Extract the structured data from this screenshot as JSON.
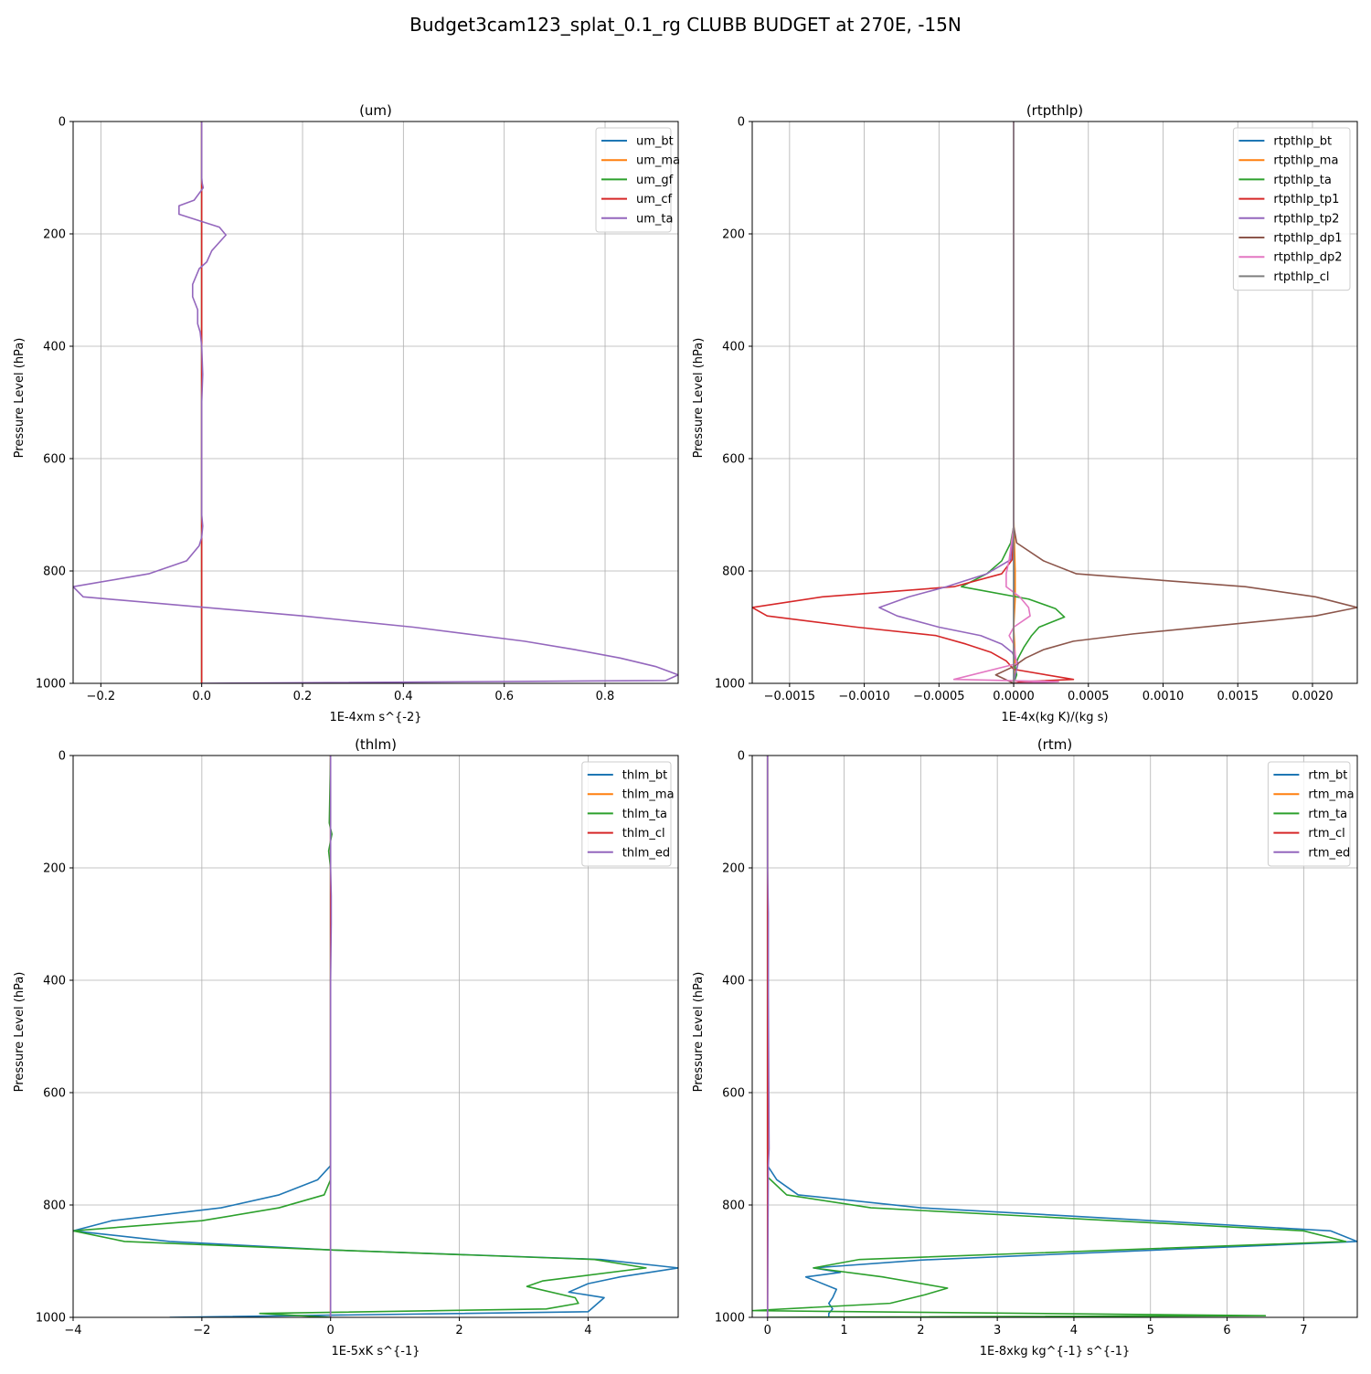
{
  "figure": {
    "suptitle": "Budget3cam123_splat_0.1_rg CLUBB BUDGET at 270E, -15N",
    "colors": [
      "#1f77b4",
      "#ff7f0e",
      "#2ca02c",
      "#d62728",
      "#9467bd",
      "#8c564b",
      "#e377c2",
      "#7f7f7f"
    ]
  },
  "chart_data": [
    {
      "type": "line",
      "title": "(um)",
      "xlabel": "1E-4xm s^{-2}",
      "ylabel": "Pressure Level (hPa)",
      "xlim": [
        -0.255,
        0.945
      ],
      "ylim": [
        1000,
        0
      ],
      "y_inverted": true,
      "grid": true,
      "legend_position": "upper-right",
      "xticks": [
        -0.2,
        0.0,
        0.2,
        0.4,
        0.6,
        0.8
      ],
      "xtick_labels": [
        "−0.2",
        "0.0",
        "0.2",
        "0.4",
        "0.6",
        "0.8"
      ],
      "yticks": [
        0,
        200,
        400,
        600,
        800,
        1000
      ],
      "ytick_labels": [
        "0",
        "200",
        "400",
        "600",
        "800",
        "1000"
      ],
      "series": [
        {
          "name": "um_bt",
          "x": [
            0,
            0,
            0
          ],
          "y": [
            0,
            500,
            1000
          ]
        },
        {
          "name": "um_ma",
          "x": [
            0,
            0,
            0
          ],
          "y": [
            0,
            500,
            1000
          ]
        },
        {
          "name": "um_gf",
          "x": [
            0,
            0,
            0
          ],
          "y": [
            0,
            500,
            1000
          ]
        },
        {
          "name": "um_cf",
          "x": [
            0,
            0,
            0
          ],
          "y": [
            0,
            500,
            1000
          ]
        },
        {
          "name": "um_ta",
          "x": [
            0.0,
            0.0,
            0.001,
            0.003,
            -0.015,
            -0.045,
            -0.045,
            0.035,
            0.048,
            0.02,
            0.01,
            -0.005,
            -0.018,
            -0.018,
            -0.008,
            -0.008,
            -0.003,
            0.0,
            0.002,
            0.0,
            0.0,
            0.0,
            0.0,
            0.002,
            0.0,
            -0.005,
            -0.03,
            -0.105,
            -0.255,
            -0.235,
            0.2,
            0.42,
            0.64,
            0.74,
            0.83,
            0.9,
            0.945,
            0.92,
            0.0
          ],
          "y": [
            0,
            100,
            110,
            118,
            140,
            150,
            165,
            188,
            202,
            230,
            250,
            262,
            290,
            312,
            335,
            360,
            375,
            400,
            450,
            500,
            600,
            680,
            700,
            720,
            740,
            755,
            782,
            805,
            828,
            846,
            880,
            900,
            925,
            940,
            955,
            970,
            985,
            995,
            1000
          ]
        }
      ]
    },
    {
      "type": "line",
      "title": "(rtpthlp)",
      "xlabel": "1E-4x(kg K)/(kg s)",
      "ylabel": "Pressure Level (hPa)",
      "xlim": [
        -0.00175,
        0.0023
      ],
      "ylim": [
        1000,
        0
      ],
      "y_inverted": true,
      "grid": true,
      "legend_position": "upper-right",
      "xticks": [
        -0.0015,
        -0.001,
        -0.0005,
        0.0,
        0.0005,
        0.001,
        0.0015,
        0.002
      ],
      "xtick_labels": [
        "−0.0015",
        "−0.0010",
        "−0.0005",
        "0.0000",
        "0.0005",
        "0.0010",
        "0.0015",
        "0.0020"
      ],
      "yticks": [
        0,
        200,
        400,
        600,
        800,
        1000
      ],
      "ytick_labels": [
        "0",
        "200",
        "400",
        "600",
        "800",
        "1000"
      ],
      "series": [
        {
          "name": "rtpthlp_bt",
          "x": [
            0,
            0,
            0
          ],
          "y": [
            0,
            500,
            1000
          ]
        },
        {
          "name": "rtpthlp_ma",
          "x": [
            0,
            0,
            1e-05,
            1e-05,
            0,
            1e-05,
            0
          ],
          "y": [
            0,
            700,
            800,
            850,
            900,
            950,
            1000
          ]
        },
        {
          "name": "rtpthlp_ta",
          "x": [
            0,
            0,
            -2e-05,
            -8e-05,
            -0.00018,
            -0.00035,
            0.0001,
            0.00028,
            0.00034,
            0.00017,
            0.00012,
            7e-05,
            3e-05,
            1e-05,
            2e-05,
            0.0
          ],
          "y": [
            0,
            720,
            750,
            782,
            805,
            828,
            850,
            867,
            882,
            900,
            915,
            935,
            955,
            970,
            985,
            1000
          ]
        },
        {
          "name": "rtpthlp_tp1",
          "x": [
            0,
            0,
            -1e-05,
            -8e-05,
            -0.0004,
            -0.00128,
            -0.00175,
            -0.00165,
            -0.00105,
            -0.00052,
            -0.00032,
            -0.00015,
            -5e-05,
            0.0,
            0.0004,
            5e-05,
            0.0
          ],
          "y": [
            0,
            720,
            780,
            805,
            828,
            846,
            865,
            880,
            900,
            915,
            930,
            945,
            960,
            975,
            993,
            997,
            1000
          ]
        },
        {
          "name": "rtpthlp_tp2",
          "x": [
            0,
            0,
            -2e-05,
            -0.00018,
            -0.00045,
            -0.0007,
            -0.0009,
            -0.00078,
            -0.0005,
            -0.00022,
            -8e-05,
            -1e-05,
            3e-05,
            1e-05,
            0.0
          ],
          "y": [
            0,
            720,
            780,
            805,
            828,
            846,
            865,
            880,
            900,
            915,
            930,
            945,
            965,
            985,
            1000
          ]
        },
        {
          "name": "rtpthlp_dp1",
          "x": [
            0,
            0,
            2e-05,
            0.0002,
            0.00042,
            0.00155,
            0.00202,
            0.0023,
            0.00202,
            0.0008,
            0.0004,
            0.0002,
            8e-05,
            0.0,
            -0.00012,
            0.0
          ],
          "y": [
            0,
            720,
            750,
            782,
            805,
            828,
            846,
            865,
            880,
            912,
            925,
            940,
            955,
            970,
            985,
            1000
          ]
        },
        {
          "name": "rtpthlp_dp2",
          "x": [
            0,
            0,
            -3e-05,
            -5e-05,
            -5e-05,
            4e-05,
            0.0001,
            0.00011,
            0.0,
            -3e-05,
            0.0,
            2e-05,
            -0.0004,
            0.0003,
            0.0
          ],
          "y": [
            0,
            720,
            780,
            805,
            828,
            846,
            865,
            880,
            900,
            915,
            930,
            965,
            993,
            997,
            1000
          ]
        },
        {
          "name": "rtpthlp_cl",
          "x": [
            0,
            0,
            0
          ],
          "y": [
            0,
            500,
            1000
          ]
        }
      ]
    },
    {
      "type": "line",
      "title": "(thlm)",
      "xlabel": "1E-5xK s^{-1}",
      "ylabel": "Pressure Level (hPa)",
      "xlim": [
        -4.0,
        5.4
      ],
      "ylim": [
        1000,
        0
      ],
      "y_inverted": true,
      "grid": true,
      "legend_position": "upper-right",
      "xticks": [
        -4,
        -2,
        0,
        2,
        4
      ],
      "xtick_labels": [
        "−4",
        "−2",
        "0",
        "2",
        "4"
      ],
      "yticks": [
        0,
        200,
        400,
        600,
        800,
        1000
      ],
      "ytick_labels": [
        "0",
        "200",
        "400",
        "600",
        "800",
        "1000"
      ],
      "series": [
        {
          "name": "thlm_bt",
          "x": [
            0.0,
            0.0,
            0.0,
            0.0,
            -0.2,
            -0.8,
            -1.7,
            -3.4,
            -4.0,
            -2.5,
            0.0,
            4.2,
            5.4,
            4.5,
            4.0,
            3.7,
            4.25,
            4.15,
            4.0,
            -2.5
          ],
          "y": [
            0,
            600,
            700,
            730,
            755,
            782,
            805,
            828,
            846,
            865,
            880,
            897,
            912,
            928,
            940,
            955,
            965,
            975,
            990,
            1000
          ]
        },
        {
          "name": "thlm_ma",
          "x": [
            0,
            0,
            0
          ],
          "y": [
            0,
            500,
            1000
          ]
        },
        {
          "name": "thlm_ta",
          "x": [
            0.0,
            -0.02,
            0.02,
            -0.03,
            0.0,
            0.0,
            0.0,
            -0.1,
            -0.8,
            -2.0,
            -4.0,
            -3.2,
            0.0,
            4.1,
            4.9,
            3.3,
            3.05,
            3.8,
            3.85,
            3.35,
            -1.1,
            0.0
          ],
          "y": [
            0,
            120,
            140,
            170,
            200,
            600,
            755,
            782,
            805,
            828,
            846,
            865,
            880,
            897,
            912,
            935,
            945,
            965,
            975,
            985,
            993,
            1000
          ]
        },
        {
          "name": "thlm_cl",
          "x": [
            0,
            0,
            0
          ],
          "y": [
            0,
            500,
            1000
          ]
        },
        {
          "name": "thlm_ed",
          "x": [
            0.0,
            0.0,
            0.01,
            0.01,
            0.0,
            0.0,
            0.0
          ],
          "y": [
            0,
            200,
            250,
            300,
            400,
            600,
            1000
          ]
        }
      ]
    },
    {
      "type": "line",
      "title": "(rtm)",
      "xlabel": "1E-8xkg kg^{-1} s^{-1}",
      "ylabel": "Pressure Level (hPa)",
      "xlim": [
        -0.2,
        7.7
      ],
      "ylim": [
        1000,
        0
      ],
      "y_inverted": true,
      "grid": true,
      "legend_position": "upper-right",
      "xticks": [
        0,
        1,
        2,
        3,
        4,
        5,
        6,
        7
      ],
      "xtick_labels": [
        "0",
        "1",
        "2",
        "3",
        "4",
        "5",
        "6",
        "7"
      ],
      "yticks": [
        0,
        200,
        400,
        600,
        800,
        1000
      ],
      "ytick_labels": [
        "0",
        "200",
        "400",
        "600",
        "800",
        "1000"
      ],
      "series": [
        {
          "name": "rtm_bt",
          "x": [
            0.0,
            0.0,
            0.0,
            0.01,
            0.0,
            0.12,
            0.4,
            2.0,
            4.0,
            7.35,
            7.7,
            2.0,
            0.6,
            0.95,
            0.5,
            0.9,
            0.85,
            0.8,
            0.85,
            0.8,
            0.8
          ],
          "y": [
            0,
            600,
            700,
            720,
            730,
            755,
            782,
            805,
            820,
            846,
            865,
            898,
            912,
            920,
            928,
            950,
            965,
            975,
            985,
            993,
            1000
          ]
        },
        {
          "name": "rtm_ma",
          "x": [
            0,
            0,
            0
          ],
          "y": [
            0,
            500,
            1000
          ]
        },
        {
          "name": "rtm_ta",
          "x": [
            0.0,
            0.0,
            0.0,
            0.0,
            0.25,
            1.35,
            7.0,
            7.55,
            1.2,
            0.6,
            1.5,
            2.35,
            2.05,
            1.6,
            -0.2,
            6.5,
            0.0
          ],
          "y": [
            0,
            600,
            700,
            750,
            782,
            805,
            846,
            865,
            897,
            912,
            928,
            948,
            960,
            975,
            988,
            997,
            1000
          ]
        },
        {
          "name": "rtm_cl",
          "x": [
            0,
            0,
            0
          ],
          "y": [
            0,
            500,
            1000
          ]
        },
        {
          "name": "rtm_ed",
          "x": [
            0.0,
            0.0,
            0.01,
            0.01,
            0.02,
            0.01,
            0.0
          ],
          "y": [
            0,
            200,
            280,
            420,
            700,
            730,
            1000
          ]
        }
      ]
    }
  ]
}
